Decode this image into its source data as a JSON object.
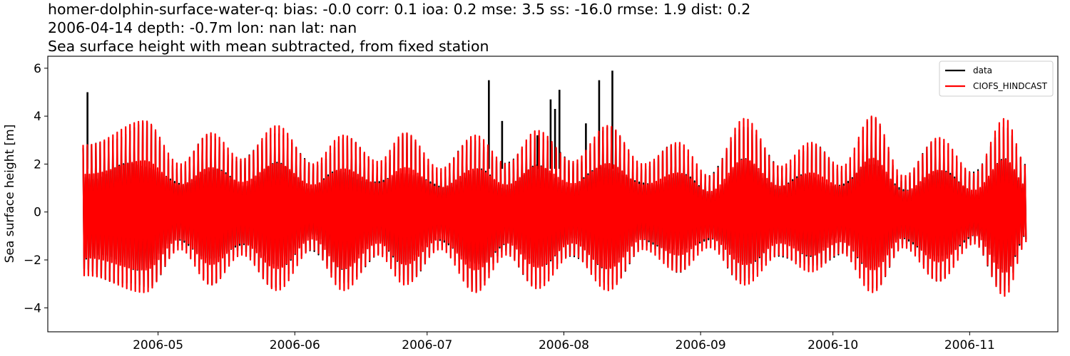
{
  "chart_data": {
    "type": "line",
    "title": [
      "homer-dolphin-surface-water-q: bias: -0.0  corr: 0.1  ioa: 0.2  mse: 3.5  ss: -16.0  rmse: 1.9  dist: 0.2",
      "2006-04-14 depth: -0.7m lon: nan lat: nan",
      "Sea surface height with mean subtracted, from fixed station"
    ],
    "xlabel": "",
    "ylabel": "Sea surface height [m]",
    "xlim": [
      "2006-04-06",
      "2006-11-21"
    ],
    "ylim": [
      -5,
      6.5
    ],
    "x_ticks": [
      "2006-05-01",
      "2006-06-01",
      "2006-07-01",
      "2006-08-01",
      "2006-09-01",
      "2006-10-01",
      "2006-11-01"
    ],
    "x_tick_labels": [
      "2006-05",
      "2006-06",
      "2006-07",
      "2006-08",
      "2006-09",
      "2006-10",
      "2006-11"
    ],
    "y_ticks": [
      -4,
      -2,
      0,
      2,
      4,
      6
    ],
    "y_tick_labels": [
      "−4",
      "−2",
      "0",
      "2",
      "4",
      "6"
    ],
    "grid": false,
    "legend_position": "top-right",
    "series": [
      {
        "name": "data",
        "color": "#000000",
        "x_range": [
          "2006-04-14",
          "2006-11-14"
        ],
        "note_peaks": [
          {
            "x": "2006-04-15",
            "y": 5.0
          },
          {
            "x": "2006-07-15",
            "y": 5.5
          },
          {
            "x": "2006-07-18",
            "y": 3.8
          },
          {
            "x": "2006-07-26",
            "y": 3.2
          },
          {
            "x": "2006-07-29",
            "y": 4.7
          },
          {
            "x": "2006-07-30",
            "y": 4.3
          },
          {
            "x": "2006-07-31",
            "y": 5.1
          },
          {
            "x": "2006-08-06",
            "y": 3.7
          },
          {
            "x": "2006-08-09",
            "y": 5.5
          },
          {
            "x": "2006-08-12",
            "y": 5.9
          }
        ]
      },
      {
        "name": "CIOFS_HINDCAST",
        "color": "#ff0000",
        "x_range": [
          "2006-04-14",
          "2006-11-14"
        ],
        "envelope": [
          {
            "x": "2006-04-15",
            "hi": 2.8,
            "lo": -3.4
          },
          {
            "x": "2006-04-28",
            "hi": 3.8,
            "lo": -4.3
          },
          {
            "x": "2006-05-06",
            "hi": 2.0,
            "lo": -2.0
          },
          {
            "x": "2006-05-13",
            "hi": 3.3,
            "lo": -3.9
          },
          {
            "x": "2006-05-20",
            "hi": 2.2,
            "lo": -2.3
          },
          {
            "x": "2006-05-28",
            "hi": 3.6,
            "lo": -4.2
          },
          {
            "x": "2006-06-05",
            "hi": 2.0,
            "lo": -2.0
          },
          {
            "x": "2006-06-12",
            "hi": 3.2,
            "lo": -4.2
          },
          {
            "x": "2006-06-20",
            "hi": 2.1,
            "lo": -2.3
          },
          {
            "x": "2006-06-26",
            "hi": 3.3,
            "lo": -3.9
          },
          {
            "x": "2006-07-04",
            "hi": 1.8,
            "lo": -2.0
          },
          {
            "x": "2006-07-12",
            "hi": 3.2,
            "lo": -4.3
          },
          {
            "x": "2006-07-19",
            "hi": 2.0,
            "lo": -2.3
          },
          {
            "x": "2006-07-26",
            "hi": 3.4,
            "lo": -4.1
          },
          {
            "x": "2006-08-03",
            "hi": 2.1,
            "lo": -2.3
          },
          {
            "x": "2006-08-11",
            "hi": 3.6,
            "lo": -4.2
          },
          {
            "x": "2006-08-19",
            "hi": 2.0,
            "lo": -2.0
          },
          {
            "x": "2006-08-27",
            "hi": 2.9,
            "lo": -3.2
          },
          {
            "x": "2006-09-03",
            "hi": 1.5,
            "lo": -1.9
          },
          {
            "x": "2006-09-11",
            "hi": 3.9,
            "lo": -3.9
          },
          {
            "x": "2006-09-19",
            "hi": 1.9,
            "lo": -2.3
          },
          {
            "x": "2006-09-26",
            "hi": 2.9,
            "lo": -3.2
          },
          {
            "x": "2006-10-03",
            "hi": 1.9,
            "lo": -2.2
          },
          {
            "x": "2006-10-10",
            "hi": 4.0,
            "lo": -4.3
          },
          {
            "x": "2006-10-17",
            "hi": 1.5,
            "lo": -1.9
          },
          {
            "x": "2006-10-25",
            "hi": 3.1,
            "lo": -3.7
          },
          {
            "x": "2006-11-02",
            "hi": 1.6,
            "lo": -1.7
          },
          {
            "x": "2006-11-09",
            "hi": 3.9,
            "lo": -4.5
          },
          {
            "x": "2006-11-14",
            "hi": 1.9,
            "lo": -1.6
          }
        ]
      }
    ]
  }
}
